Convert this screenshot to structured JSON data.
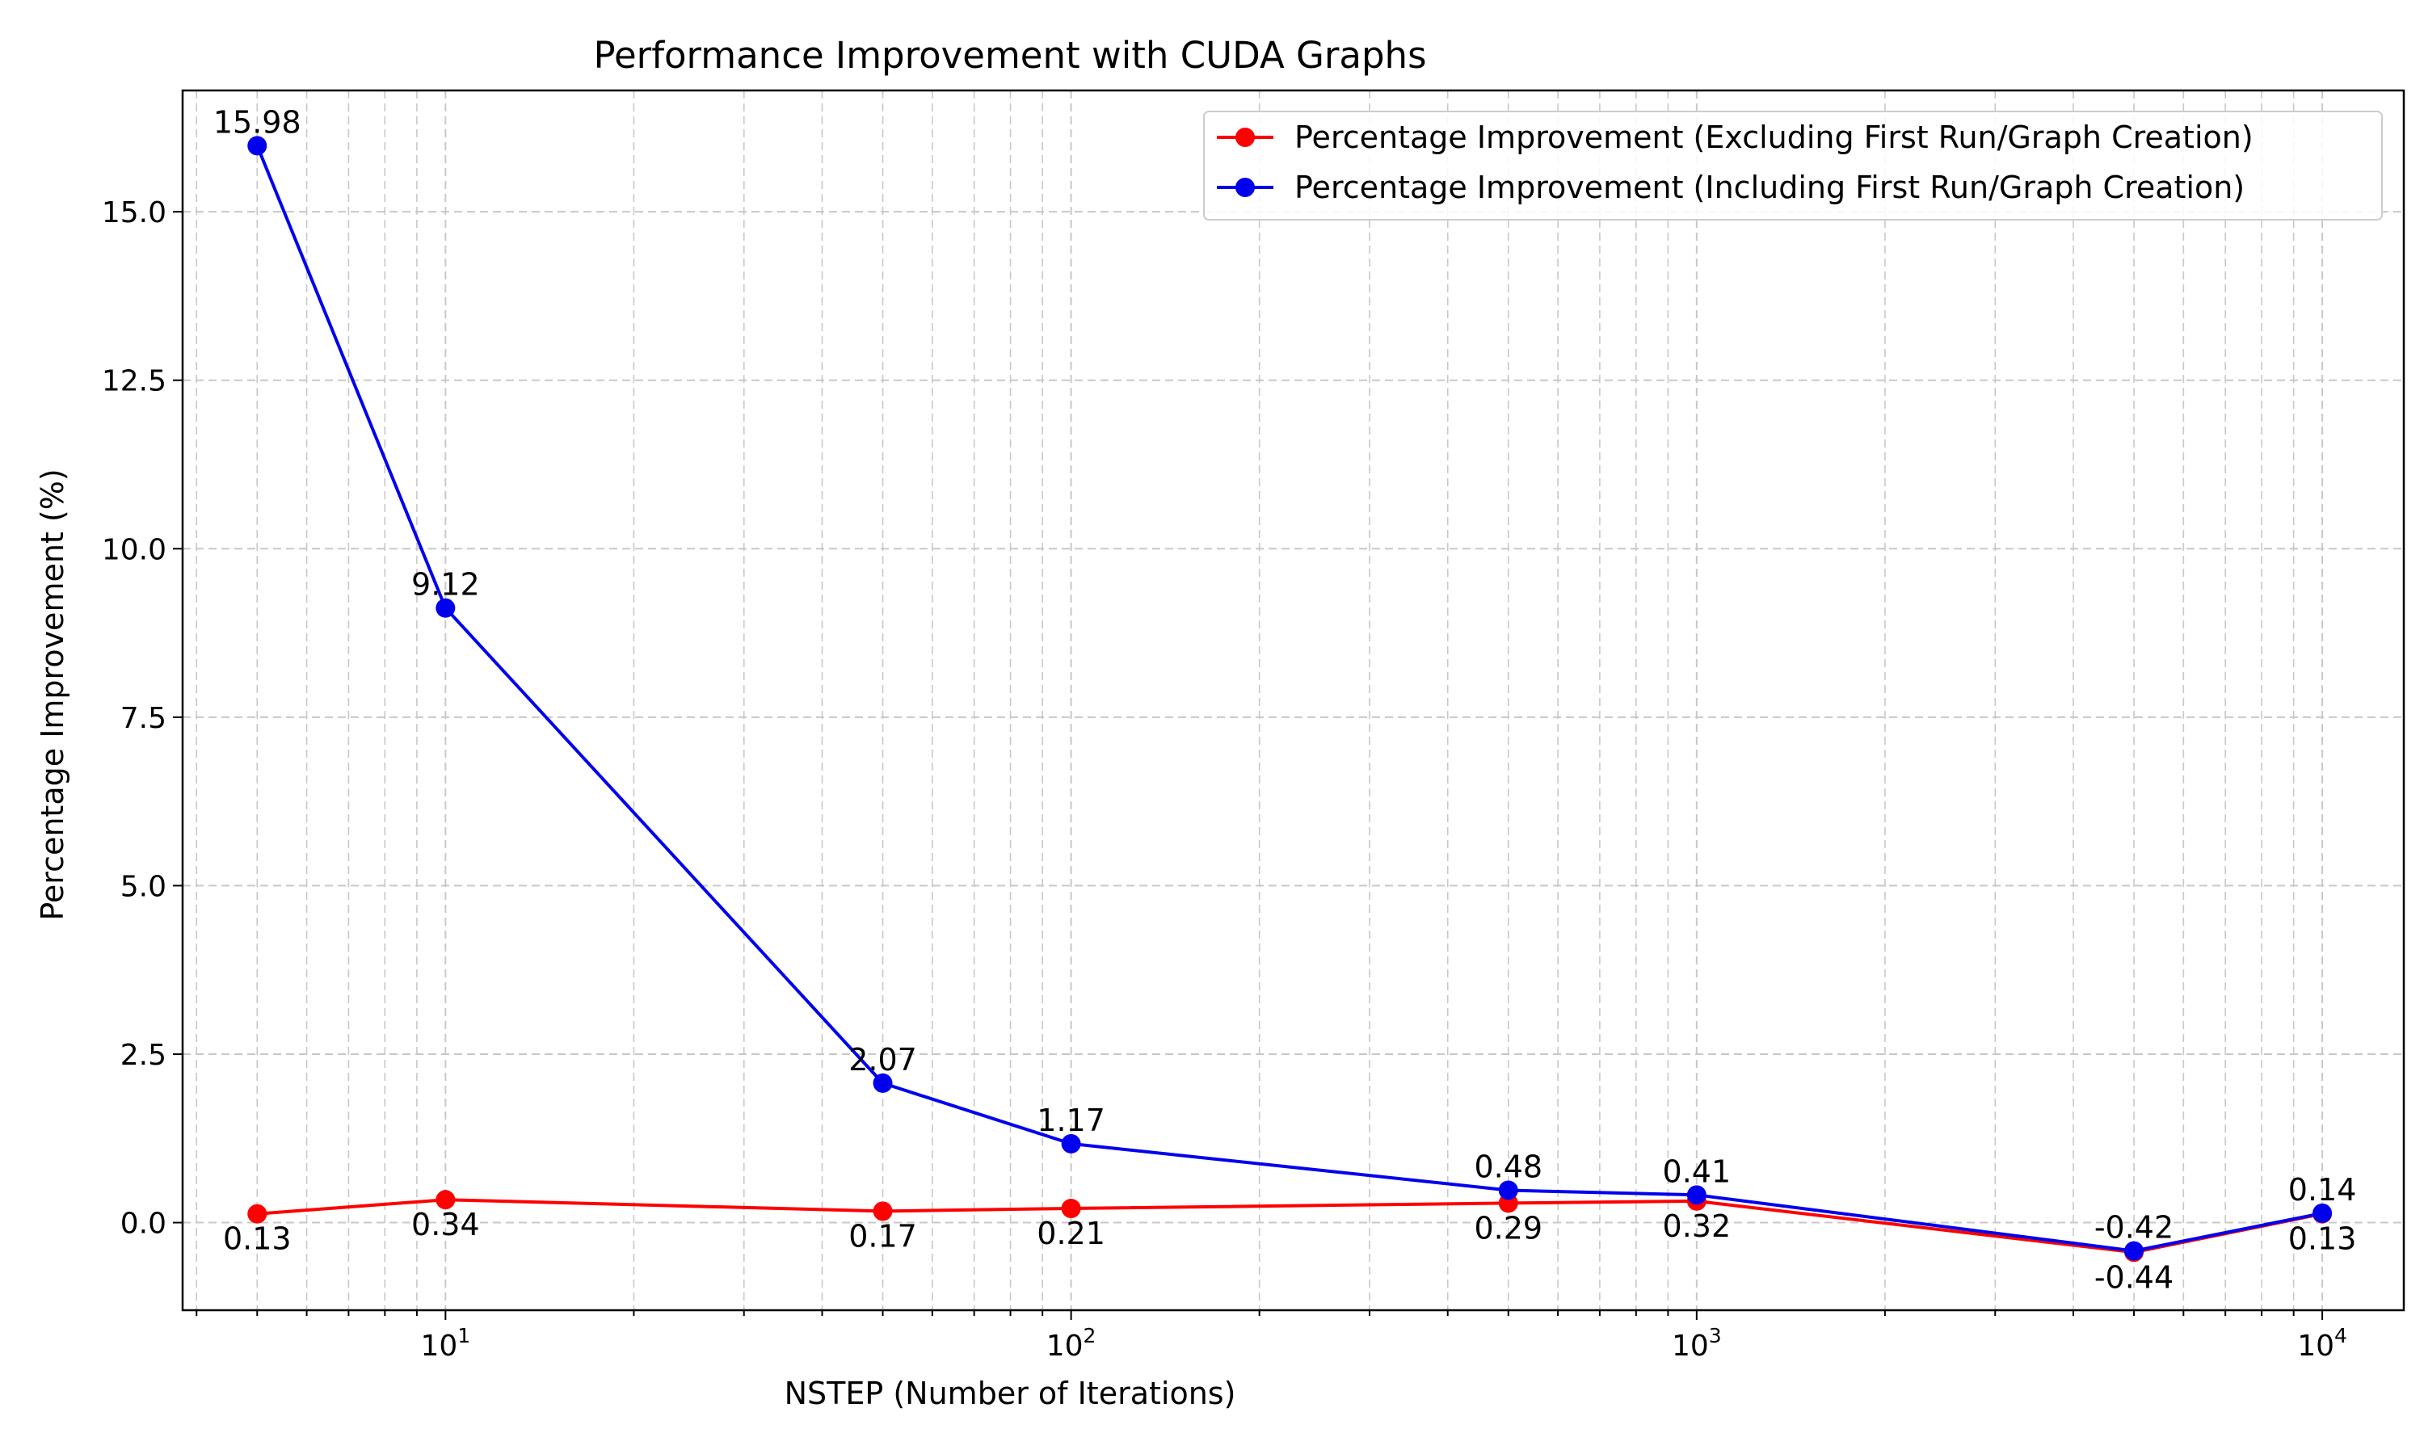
{
  "chart_data": {
    "type": "line",
    "title": "Performance Improvement with CUDA Graphs",
    "xlabel": "NSTEP (Number of Iterations)",
    "ylabel": "Percentage Improvement (%)",
    "x_scale": "log",
    "xlim": [
      3.8,
      13500
    ],
    "ylim": [
      -1.3,
      16.8
    ],
    "grid": true,
    "legend_position": "top-right",
    "x": [
      5,
      10,
      50,
      100,
      500,
      1000,
      5000,
      10000
    ],
    "x_ticks": [
      {
        "value": 10,
        "base": "10",
        "exp": "1"
      },
      {
        "value": 100,
        "base": "10",
        "exp": "2"
      },
      {
        "value": 1000,
        "base": "10",
        "exp": "3"
      },
      {
        "value": 10000,
        "base": "10",
        "exp": "4"
      }
    ],
    "y_ticks": [
      {
        "value": 0,
        "label": "0.0"
      },
      {
        "value": 2.5,
        "label": "2.5"
      },
      {
        "value": 5,
        "label": "5.0"
      },
      {
        "value": 7.5,
        "label": "7.5"
      },
      {
        "value": 10,
        "label": "10.0"
      },
      {
        "value": 12.5,
        "label": "12.5"
      },
      {
        "value": 15,
        "label": "15.0"
      }
    ],
    "series": [
      {
        "name": "Percentage Improvement (Excluding First Run/Graph Creation)",
        "color": "#ff0000",
        "label_position": "below",
        "values": [
          0.13,
          0.34,
          0.17,
          0.21,
          0.29,
          0.32,
          -0.44,
          0.13
        ],
        "labels": [
          "0.13",
          "0.34",
          "0.17",
          "0.21",
          "0.29",
          "0.32",
          "-0.44",
          "0.13"
        ]
      },
      {
        "name": "Percentage Improvement (Including First Run/Graph Creation)",
        "color": "#0000ee",
        "label_position": "above",
        "values": [
          15.98,
          9.12,
          2.07,
          1.17,
          0.48,
          0.41,
          -0.42,
          0.14
        ],
        "labels": [
          "15.98",
          "9.12",
          "2.07",
          "1.17",
          "0.48",
          "0.41",
          "-0.42",
          "0.14"
        ]
      }
    ]
  }
}
